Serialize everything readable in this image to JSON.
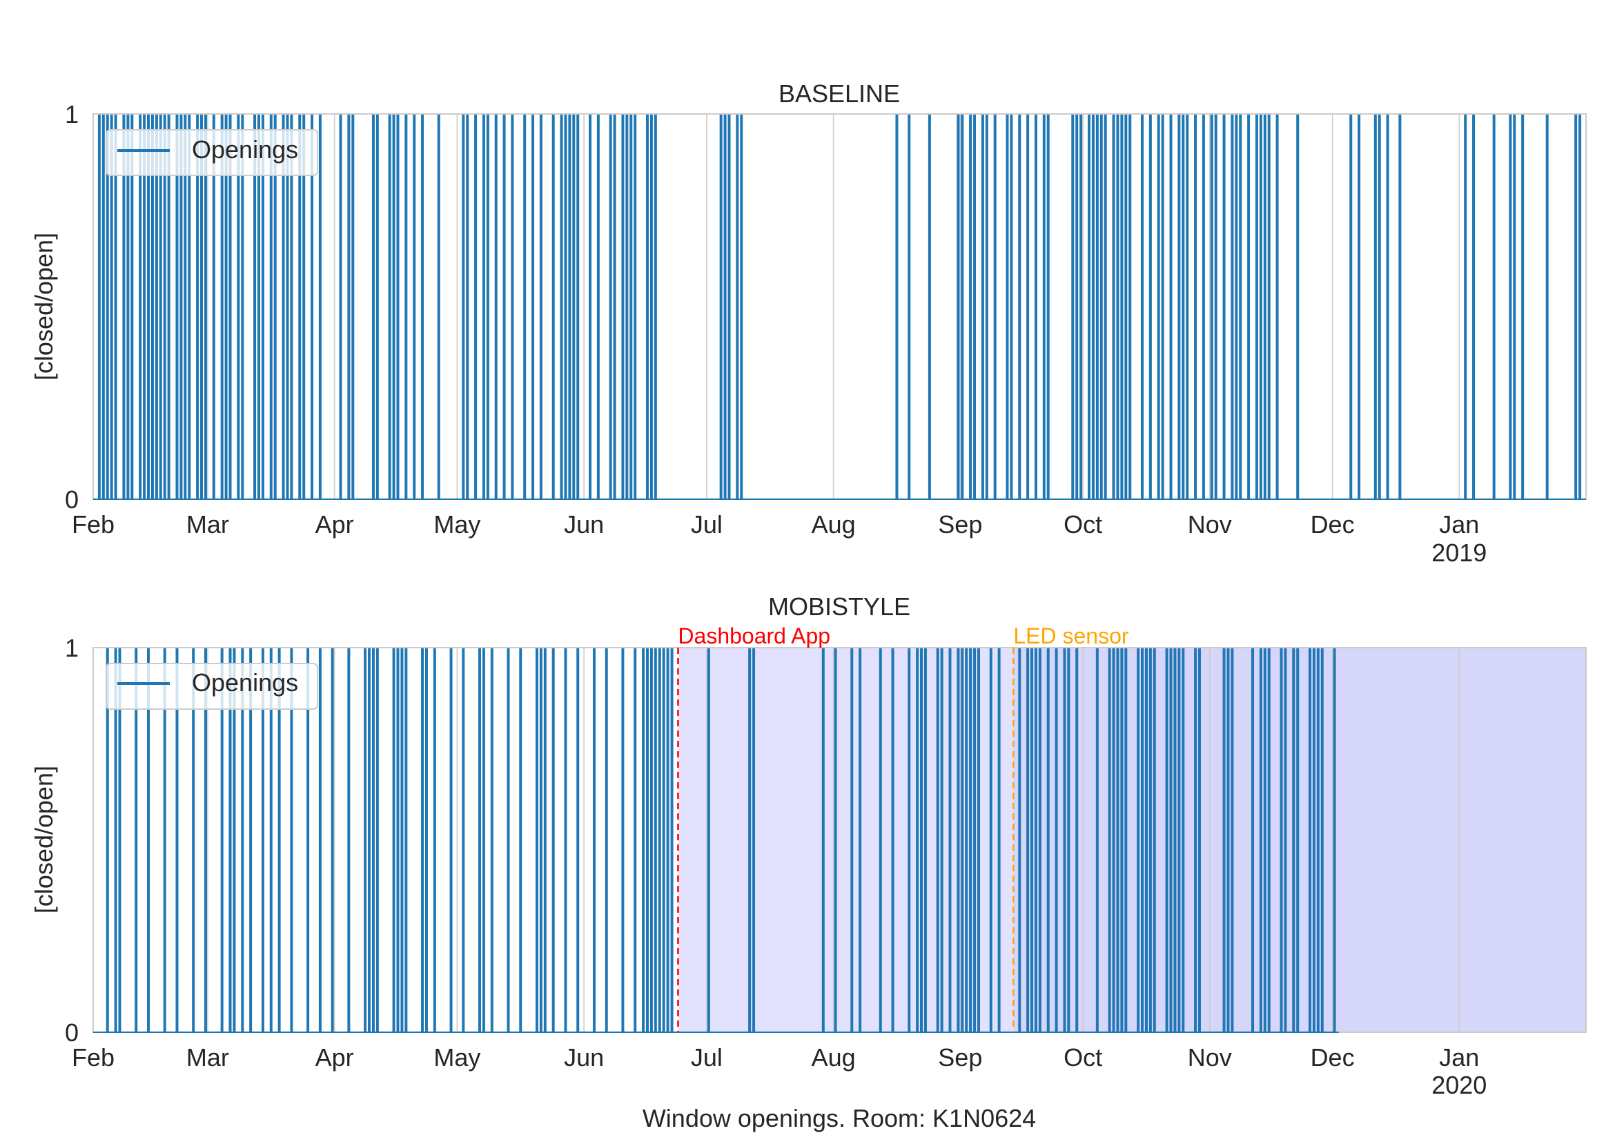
{
  "figure_caption": "Window openings. Room: K1N0624",
  "colors": {
    "openings": "#1f77b4",
    "grid": "#cccccc",
    "dashboard": "#ff0000",
    "led": "#ffa500",
    "shade": "#d9d9ff"
  },
  "chart_data": [
    {
      "type": "bar",
      "title": "BASELINE",
      "xlabel": "",
      "ylabel": "[closed/open]",
      "yticks": [
        "0",
        "1"
      ],
      "ylim": [
        0,
        1
      ],
      "xlim": [
        "2018-02-01",
        "2019-01-31"
      ],
      "month_ticks": [
        "Feb",
        "Mar",
        "Apr",
        "May",
        "Jun",
        "Jul",
        "Aug",
        "Sep",
        "Oct",
        "Nov",
        "Dec",
        "Jan"
      ],
      "year_label": "2019",
      "legend": {
        "label": "Openings",
        "position": "upper-left"
      },
      "grid": true,
      "openings": [
        "2018-02-02",
        "2018-02-03",
        "2018-02-04",
        "2018-02-05",
        "2018-02-06",
        "2018-02-08",
        "2018-02-09",
        "2018-02-10",
        "2018-02-12",
        "2018-02-13",
        "2018-02-14",
        "2018-02-15",
        "2018-02-16",
        "2018-02-17",
        "2018-02-18",
        "2018-02-19",
        "2018-02-21",
        "2018-02-22",
        "2018-02-23",
        "2018-02-24",
        "2018-02-26",
        "2018-02-27",
        "2018-02-28",
        "2018-03-02",
        "2018-03-04",
        "2018-03-05",
        "2018-03-06",
        "2018-03-08",
        "2018-03-09",
        "2018-03-12",
        "2018-03-13",
        "2018-03-14",
        "2018-03-16",
        "2018-03-17",
        "2018-03-19",
        "2018-03-20",
        "2018-03-21",
        "2018-03-23",
        "2018-03-24",
        "2018-03-26",
        "2018-03-28",
        "2018-04-02",
        "2018-04-04",
        "2018-04-05",
        "2018-04-10",
        "2018-04-11",
        "2018-04-14",
        "2018-04-15",
        "2018-04-16",
        "2018-04-18",
        "2018-04-20",
        "2018-04-22",
        "2018-04-26",
        "2018-05-02",
        "2018-05-03",
        "2018-05-05",
        "2018-05-07",
        "2018-05-08",
        "2018-05-10",
        "2018-05-12",
        "2018-05-14",
        "2018-05-17",
        "2018-05-19",
        "2018-05-21",
        "2018-05-24",
        "2018-05-26",
        "2018-05-27",
        "2018-05-28",
        "2018-05-29",
        "2018-05-30",
        "2018-06-02",
        "2018-06-04",
        "2018-06-07",
        "2018-06-08",
        "2018-06-10",
        "2018-06-11",
        "2018-06-12",
        "2018-06-13",
        "2018-06-16",
        "2018-06-17",
        "2018-06-18",
        "2018-07-04",
        "2018-07-05",
        "2018-07-06",
        "2018-07-08",
        "2018-07-09",
        "2018-08-16",
        "2018-08-19",
        "2018-08-24",
        "2018-08-31",
        "2018-09-01",
        "2018-09-03",
        "2018-09-04",
        "2018-09-06",
        "2018-09-07",
        "2018-09-09",
        "2018-09-12",
        "2018-09-13",
        "2018-09-15",
        "2018-09-17",
        "2018-09-19",
        "2018-09-21",
        "2018-09-22",
        "2018-09-28",
        "2018-09-29",
        "2018-09-30",
        "2018-10-02",
        "2018-10-03",
        "2018-10-04",
        "2018-10-05",
        "2018-10-06",
        "2018-10-08",
        "2018-10-09",
        "2018-10-10",
        "2018-10-11",
        "2018-10-12",
        "2018-10-15",
        "2018-10-17",
        "2018-10-19",
        "2018-10-20",
        "2018-10-22",
        "2018-10-24",
        "2018-10-25",
        "2018-10-26",
        "2018-10-28",
        "2018-10-30",
        "2018-11-01",
        "2018-11-02",
        "2018-11-04",
        "2018-11-06",
        "2018-11-07",
        "2018-11-08",
        "2018-11-10",
        "2018-11-12",
        "2018-11-13",
        "2018-11-14",
        "2018-11-15",
        "2018-11-17",
        "2018-11-22",
        "2018-12-05",
        "2018-12-07",
        "2018-12-11",
        "2018-12-12",
        "2018-12-14",
        "2018-12-17",
        "2019-01-02",
        "2019-01-04",
        "2019-01-09",
        "2019-01-13",
        "2019-01-14",
        "2019-01-16",
        "2019-01-22",
        "2019-01-29",
        "2019-01-30"
      ]
    },
    {
      "type": "bar",
      "title": "MOBISTYLE",
      "xlabel": "",
      "ylabel": "[closed/open]",
      "yticks": [
        "0",
        "1"
      ],
      "ylim": [
        0,
        1
      ],
      "xlim": [
        "2019-02-01",
        "2020-01-31"
      ],
      "month_ticks": [
        "Feb",
        "Mar",
        "Apr",
        "May",
        "Jun",
        "Jul",
        "Aug",
        "Sep",
        "Oct",
        "Nov",
        "Dec",
        "Jan"
      ],
      "year_label": "2020",
      "legend": {
        "label": "Openings",
        "position": "upper-left"
      },
      "grid": true,
      "interventions": [
        {
          "label": "Dashboard App",
          "date": "2019-06-24",
          "color": "#ff0000",
          "shade_to": "2019-09-14"
        },
        {
          "label": "LED sensor",
          "date": "2019-09-14",
          "color": "#ffa500",
          "shade_to": "2020-01-31"
        }
      ],
      "openings": [
        "2019-02-04",
        "2019-02-06",
        "2019-02-07",
        "2019-02-11",
        "2019-02-14",
        "2019-02-18",
        "2019-02-21",
        "2019-02-25",
        "2019-02-28",
        "2019-03-04",
        "2019-03-06",
        "2019-03-07",
        "2019-03-09",
        "2019-03-11",
        "2019-03-14",
        "2019-03-16",
        "2019-03-18",
        "2019-03-21",
        "2019-03-25",
        "2019-03-28",
        "2019-03-31",
        "2019-04-04",
        "2019-04-08",
        "2019-04-09",
        "2019-04-10",
        "2019-04-11",
        "2019-04-15",
        "2019-04-16",
        "2019-04-17",
        "2019-04-18",
        "2019-04-22",
        "2019-04-23",
        "2019-04-25",
        "2019-04-29",
        "2019-05-02",
        "2019-05-06",
        "2019-05-07",
        "2019-05-09",
        "2019-05-13",
        "2019-05-16",
        "2019-05-20",
        "2019-05-21",
        "2019-05-22",
        "2019-05-24",
        "2019-05-27",
        "2019-05-30",
        "2019-06-03",
        "2019-06-06",
        "2019-06-10",
        "2019-06-13",
        "2019-06-15",
        "2019-06-16",
        "2019-06-17",
        "2019-06-18",
        "2019-06-19",
        "2019-06-20",
        "2019-06-21",
        "2019-06-22",
        "2019-07-01",
        "2019-07-11",
        "2019-07-12",
        "2019-07-29",
        "2019-08-01",
        "2019-08-05",
        "2019-08-07",
        "2019-08-12",
        "2019-08-15",
        "2019-08-19",
        "2019-08-21",
        "2019-08-22",
        "2019-08-23",
        "2019-08-26",
        "2019-08-27",
        "2019-08-29",
        "2019-08-31",
        "2019-09-01",
        "2019-09-02",
        "2019-09-03",
        "2019-09-04",
        "2019-09-05",
        "2019-09-08",
        "2019-09-10",
        "2019-09-15",
        "2019-09-17",
        "2019-09-18",
        "2019-09-19",
        "2019-09-20",
        "2019-09-22",
        "2019-09-24",
        "2019-09-26",
        "2019-09-27",
        "2019-09-29",
        "2019-10-04",
        "2019-10-07",
        "2019-10-08",
        "2019-10-09",
        "2019-10-10",
        "2019-10-11",
        "2019-10-14",
        "2019-10-15",
        "2019-10-16",
        "2019-10-17",
        "2019-10-18",
        "2019-10-21",
        "2019-10-22",
        "2019-10-23",
        "2019-10-24",
        "2019-10-25",
        "2019-10-28",
        "2019-10-29",
        "2019-11-04",
        "2019-11-05",
        "2019-11-06",
        "2019-11-11",
        "2019-11-13",
        "2019-11-14",
        "2019-11-15",
        "2019-11-18",
        "2019-11-19",
        "2019-11-21",
        "2019-11-22",
        "2019-11-25",
        "2019-11-26",
        "2019-11-27",
        "2019-11-28",
        "2019-12-01"
      ]
    }
  ]
}
